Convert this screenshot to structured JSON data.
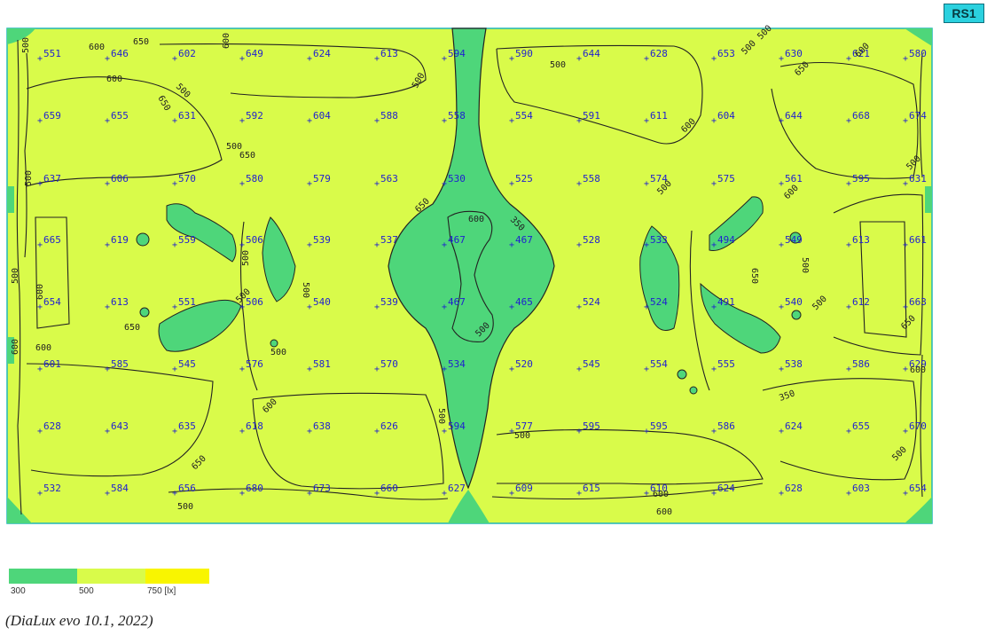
{
  "room_tag": "RS1",
  "caption": "(DiaLux evo 10.1, 2022)",
  "colors": {
    "low": "#4ed67a",
    "mid": "#d9fb4a",
    "high": "#f9f500",
    "contour": "#222222",
    "values": "#1f1fd0",
    "border": "#20b5b8"
  },
  "legend": {
    "labels": [
      "300",
      "500",
      "750 [lx]"
    ]
  },
  "grid": {
    "rows": [
      [
        "551",
        "646",
        "602",
        "649",
        "624",
        "613",
        "594",
        "590",
        "644",
        "628",
        "653",
        "630",
        "621",
        "580"
      ],
      [
        "659",
        "655",
        "631",
        "592",
        "604",
        "588",
        "558",
        "554",
        "591",
        "611",
        "604",
        "644",
        "668",
        "674"
      ],
      [
        "637",
        "606",
        "570",
        "580",
        "579",
        "563",
        "530",
        "525",
        "558",
        "574",
        "575",
        "561",
        "595",
        "631"
      ],
      [
        "665",
        "619",
        "559",
        "506",
        "539",
        "537",
        "467",
        "467",
        "528",
        "533",
        "494",
        "549",
        "613",
        "661"
      ],
      [
        "654",
        "613",
        "551",
        "506",
        "540",
        "539",
        "467",
        "465",
        "524",
        "524",
        "491",
        "540",
        "612",
        "663"
      ],
      [
        "601",
        "585",
        "545",
        "576",
        "581",
        "570",
        "534",
        "520",
        "545",
        "554",
        "555",
        "538",
        "586",
        "629"
      ],
      [
        "628",
        "643",
        "635",
        "618",
        "638",
        "626",
        "594",
        "577",
        "595",
        "595",
        "586",
        "624",
        "655",
        "670"
      ],
      [
        "532",
        "584",
        "656",
        "680",
        "673",
        "660",
        "627",
        "609",
        "615",
        "610",
        "624",
        "628",
        "603",
        "654"
      ]
    ]
  },
  "contour_labels": [
    "500",
    "600",
    "650",
    "500",
    "500",
    "600",
    "650",
    "500",
    "600",
    "650",
    "600",
    "650",
    "600",
    "500",
    "500",
    "600",
    "650",
    "600",
    "500",
    "350",
    "500",
    "500",
    "500",
    "500",
    "500",
    "500",
    "500",
    "500",
    "600",
    "600",
    "650",
    "500",
    "500",
    "500",
    "350",
    "500",
    "600",
    "650",
    "500",
    "600",
    "500",
    "650",
    "600",
    "600",
    "500",
    "650",
    "600"
  ]
}
